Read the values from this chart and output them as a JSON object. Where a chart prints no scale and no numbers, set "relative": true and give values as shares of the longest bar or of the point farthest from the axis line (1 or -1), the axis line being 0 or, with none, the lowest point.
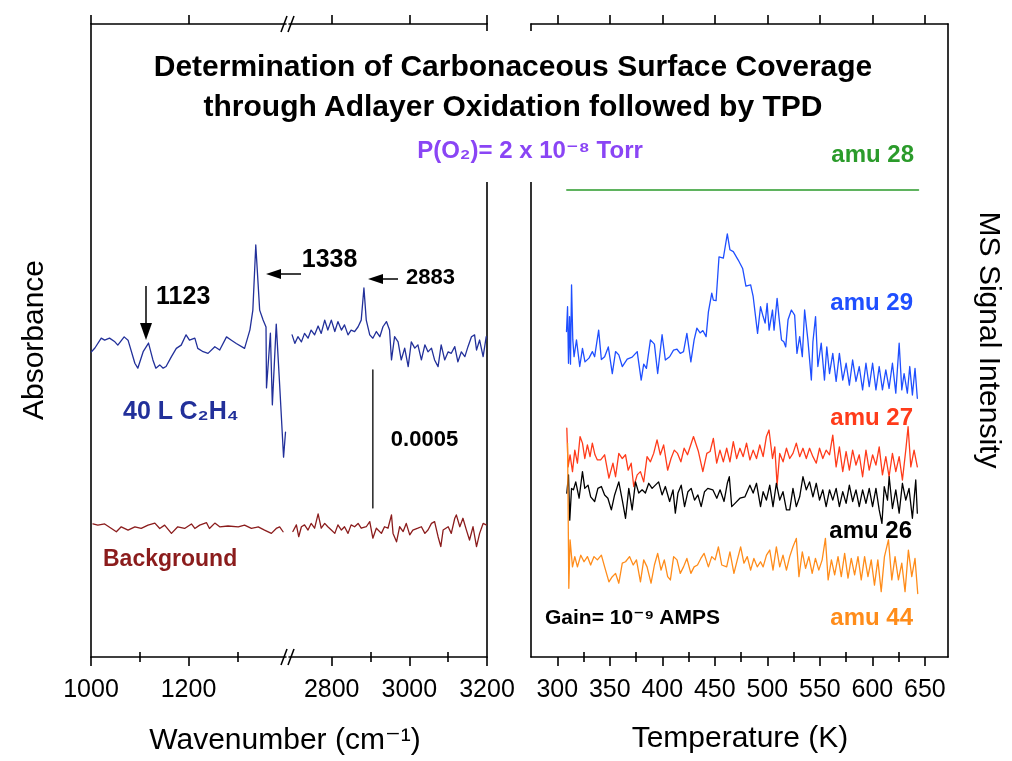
{
  "chart_data": [
    {
      "type": "line",
      "title": "Determination of Carbonaceous Surface Coverage\nthrough Adlayer Oxidation followed by TPD",
      "xlabel": "Wavenumber (cm⁻¹)",
      "ylabel": "Absorbance",
      "relative": true,
      "tick_labels": "x",
      "xlim": [
        1000,
        1400
      ],
      "xticks": [
        1000,
        {
          "value": 1100,
          "label": null
        },
        1200,
        {
          "value": 1300,
          "label": null
        }
      ],
      "annotations": [
        {
          "text": "1123",
          "x": 1113,
          "y": 0.77
        },
        {
          "text": "1338",
          "x": 1338,
          "y": 0.93
        }
      ],
      "series": [
        {
          "name": "40 L C₂H₄",
          "color": "#22309a",
          "x": [
            1001,
            1008,
            1021,
            1028,
            1038,
            1049,
            1055,
            1068,
            1076,
            1090,
            1096,
            1107,
            1118,
            1127,
            1133,
            1141,
            1148,
            1154,
            1165,
            1175,
            1185,
            1195,
            1202,
            1213,
            1219,
            1230,
            1240,
            1254,
            1264,
            1278,
            1288,
            1298,
            1315,
            1326,
            1332,
            1338,
            1346,
            1353,
            1359,
            1360,
            1368,
            1372,
            1380,
            1387,
            1395,
            1399
          ],
          "values": [
            0.741,
            0.75,
            0.774,
            0.769,
            0.774,
            0.765,
            0.757,
            0.777,
            0.769,
            0.713,
            0.701,
            0.741,
            0.762,
            0.721,
            0.701,
            0.709,
            0.701,
            0.705,
            0.729,
            0.749,
            0.757,
            0.782,
            0.769,
            0.774,
            0.749,
            0.741,
            0.737,
            0.753,
            0.745,
            0.777,
            0.769,
            0.761,
            0.749,
            0.794,
            0.842,
            1,
            0.842,
            0.818,
            0.801,
            0.653,
            0.786,
            0.612,
            0.808,
            0.66,
            0.485,
            0.546
          ]
        },
        {
          "name": "Background",
          "color": "#8b1c1c",
          "x": [
            1004,
            1014,
            1028,
            1042,
            1052,
            1062,
            1076,
            1090,
            1103,
            1117,
            1131,
            1141,
            1151,
            1165,
            1178,
            1192,
            1206,
            1213,
            1223,
            1237,
            1243,
            1254,
            1264,
            1281,
            1302,
            1315,
            1329,
            1343,
            1356,
            1370,
            1380,
            1387,
            1394
          ],
          "values": [
            0.323,
            0.32,
            0.323,
            0.312,
            0.304,
            0.316,
            0.308,
            0.316,
            0.312,
            0.32,
            0.325,
            0.312,
            0.32,
            0.3,
            0.316,
            0.312,
            0.323,
            0.312,
            0.32,
            0.326,
            0.312,
            0.325,
            0.316,
            0.318,
            0.316,
            0.32,
            0.312,
            0.316,
            0.308,
            0.3,
            0.312,
            0.316,
            0.304
          ]
        }
      ]
    },
    {
      "type": "line",
      "relative": true,
      "tick_labels": "x",
      "xlim": [
        2690,
        3200
      ],
      "xticks": [
        2800,
        {
          "value": 2900,
          "label": null
        },
        3000,
        {
          "value": 3100,
          "label": null
        },
        3200
      ],
      "annotations": [
        {
          "text": "2883",
          "x": 2883,
          "y": 1
        },
        {
          "text": "0.0005",
          "x": 2906,
          "y": 0.59
        }
      ],
      "series": [
        {
          "color": "#22309a",
          "x": [
            2698,
            2705,
            2713,
            2722,
            2730,
            2739,
            2747,
            2756,
            2765,
            2773,
            2782,
            2790,
            2799,
            2808,
            2816,
            2825,
            2833,
            2842,
            2850,
            2859,
            2868,
            2876,
            2883,
            2889,
            2898,
            2906,
            2915,
            2924,
            2932,
            2941,
            2949,
            2954,
            2962,
            2971,
            2979,
            2988,
            2997,
            3005,
            3014,
            3022,
            3031,
            3040,
            3048,
            3057,
            3065,
            3074,
            3082,
            3091,
            3100,
            3108,
            3117,
            3125,
            3134,
            3143,
            3151,
            3160,
            3168,
            3173,
            3181,
            3190,
            3198
          ],
          "values": [
            0.873,
            0.85,
            0.868,
            0.854,
            0.877,
            0.864,
            0.886,
            0.873,
            0.897,
            0.877,
            0.913,
            0.886,
            0.913,
            0.882,
            0.909,
            0.886,
            0.9,
            0.873,
            0.886,
            0.882,
            0.895,
            0.913,
            1,
            0.913,
            0.873,
            0.864,
            0.882,
            0.868,
            0.895,
            0.909,
            0.886,
            0.805,
            0.868,
            0.854,
            0.805,
            0.837,
            0.787,
            0.854,
            0.837,
            0.846,
            0.805,
            0.846,
            0.827,
            0.837,
            0.805,
            0.787,
            0.846,
            0.805,
            0.827,
            0.823,
            0.841,
            0.8,
            0.827,
            0.814,
            0.841,
            0.868,
            0.873,
            0.832,
            0.859,
            0.814,
            0.868
          ]
        },
        {
          "color": "#8b1c1c",
          "x": [
            2700,
            2709,
            2715,
            2722,
            2730,
            2739,
            2747,
            2756,
            2765,
            2773,
            2782,
            2790,
            2799,
            2808,
            2816,
            2825,
            2833,
            2842,
            2850,
            2859,
            2868,
            2876,
            2889,
            2898,
            2906,
            2915,
            2928,
            2936,
            2945,
            2954,
            2958,
            2967,
            2975,
            2984,
            2992,
            3001,
            3009,
            3022,
            3031,
            3040,
            3048,
            3057,
            3065,
            3074,
            3081,
            3087,
            3100,
            3108,
            3117,
            3121,
            3130,
            3138,
            3147,
            3155,
            3164,
            3173,
            3181,
            3190,
            3198
          ],
          "values": [
            0.34,
            0.358,
            0.326,
            0.353,
            0.358,
            0.344,
            0.362,
            0.349,
            0.388,
            0.349,
            0.362,
            0.353,
            0.344,
            0.335,
            0.358,
            0.344,
            0.353,
            0.335,
            0.358,
            0.353,
            0.362,
            0.349,
            0.353,
            0.367,
            0.322,
            0.349,
            0.335,
            0.353,
            0.349,
            0.385,
            0.335,
            0.312,
            0.353,
            0.34,
            0.362,
            0.331,
            0.344,
            0.349,
            0.353,
            0.335,
            0.344,
            0.362,
            0.367,
            0.326,
            0.299,
            0.344,
            0.353,
            0.335,
            0.376,
            0.385,
            0.353,
            0.376,
            0.344,
            0.317,
            0.353,
            0.299,
            0.335,
            0.362,
            0.358
          ]
        },
        {
          "color": "#000000",
          "x": [
            2906,
            2906
          ],
          "values": [
            0.404,
            0.778
          ]
        }
      ]
    },
    {
      "type": "line",
      "subtitle": "P(O₂)= 2 x 10⁻⁸ Torr",
      "xlabel": "Temperature (K)",
      "ylabel": "MS Signal Intensity",
      "relative": true,
      "tick_labels": "x",
      "xlim": [
        275,
        672
      ],
      "xticks": [
        300,
        {
          "value": 325,
          "label": null
        },
        350,
        {
          "value": 375,
          "label": null
        },
        400,
        {
          "value": 425,
          "label": null
        },
        450,
        {
          "value": 475,
          "label": null
        },
        500,
        {
          "value": 525,
          "label": null
        },
        550,
        {
          "value": 575,
          "label": null
        },
        600,
        {
          "value": 625,
          "label": null
        },
        650
      ],
      "annotations": [
        "Gain= 10⁻⁹ AMPS"
      ],
      "series": [
        {
          "name": "amu 28",
          "color": "#2b9b2b",
          "x": [
            309,
            644
          ],
          "values": [
            1,
            1
          ]
        },
        {
          "name": "amu 29",
          "color": "#1f4fff",
          "x": [
            308.8,
            309.8,
            310.7,
            311.7,
            312.6,
            313.6,
            314.8,
            316.0,
            318.3,
            321.4,
            324.0,
            326.4,
            330.2,
            333.4,
            335.6,
            339.4,
            342.0,
            345.1,
            348.6,
            352.4,
            355.5,
            358.6,
            361.9,
            366.6,
            371.3,
            376.1,
            379.9,
            382.3,
            384.9,
            388.7,
            392.5,
            395.6,
            399.8,
            402.9,
            407.0,
            410.7,
            414.0,
            417.1,
            420.2,
            423.4,
            427.2,
            430.3,
            432.9,
            436.0,
            438.6,
            441.7,
            443.9,
            447.1,
            448.6,
            451.2,
            454.0,
            458.1,
            461.9,
            464.4,
            467.6,
            472.3,
            476.5,
            479.6,
            484.1,
            486.5,
            490.7,
            493.5,
            496.0,
            497.9,
            499.8,
            501.7,
            504.9,
            506.4,
            509.3,
            511.2,
            513.5,
            515.7,
            517.5,
            519.7,
            522.9,
            526.0,
            528.2,
            530.8,
            533.3,
            535.5,
            538.6,
            541.9,
            543.4,
            545.9,
            548.1,
            551.3,
            554.4,
            556.6,
            559.2,
            562.3,
            565.5,
            568.6,
            571.8,
            575.0,
            578.1,
            581.2,
            584.4,
            587.5,
            590.7,
            593.9,
            597.0,
            600.2,
            603.4,
            606.5,
            609.6,
            612.8,
            615.9,
            619.1,
            622.3,
            625.5,
            628.0,
            630.2,
            633.3,
            635.6,
            638.1,
            640.6,
            642.8
          ],
          "values": [
            0.697,
            0.75,
            0.629,
            0.729,
            0.627,
            0.797,
            0.679,
            0.643,
            0.679,
            0.622,
            0.661,
            0.632,
            0.64,
            0.654,
            0.643,
            0.7,
            0.637,
            0.643,
            0.664,
            0.607,
            0.654,
            0.647,
            0.622,
            0.638,
            0.642,
            0.654,
            0.593,
            0.627,
            0.618,
            0.679,
            0.67,
            0.607,
            0.69,
            0.636,
            0.643,
            0.657,
            0.659,
            0.65,
            0.654,
            0.693,
            0.632,
            0.679,
            0.704,
            0.694,
            0.699,
            0.686,
            0.739,
            0.779,
            0.764,
            0.763,
            0.857,
            0.854,
            0.906,
            0.872,
            0.868,
            0.85,
            0.832,
            0.794,
            0.797,
            0.772,
            0.693,
            0.75,
            0.729,
            0.715,
            0.757,
            0.7,
            0.743,
            0.7,
            0.768,
            0.725,
            0.679,
            0.675,
            0.664,
            0.722,
            0.743,
            0.732,
            0.65,
            0.686,
            0.643,
            0.743,
            0.679,
            0.593,
            0.675,
            0.729,
            0.622,
            0.672,
            0.593,
            0.664,
            0.607,
            0.65,
            0.59,
            0.65,
            0.593,
            0.629,
            0.582,
            0.636,
            0.59,
            0.622,
            0.572,
            0.629,
            0.579,
            0.629,
            0.572,
            0.622,
            0.572,
            0.615,
            0.575,
            0.629,
            0.565,
            0.672,
            0.572,
            0.607,
            0.565,
            0.622,
            0.561,
            0.618,
            0.554
          ]
        },
        {
          "name": "amu 27",
          "color": "#ff3b1a",
          "x": [
            309.1,
            310.3,
            312.2,
            314.5,
            316.7,
            319.2,
            321.7,
            324.0,
            326.2,
            328.7,
            331.2,
            333.4,
            335.9,
            338.2,
            341.3,
            345.1,
            349.2,
            353.0,
            355.5,
            358.6,
            361.9,
            365.0,
            367.5,
            370.4,
            372.8,
            376.1,
            379.2,
            382.3,
            385.5,
            388.7,
            391.8,
            395.0,
            398.1,
            401.3,
            405.1,
            408.3,
            411.4,
            414.5,
            417.7,
            420.8,
            424.0,
            429.7,
            434.4,
            438.6,
            442.4,
            445.5,
            448.6,
            451.8,
            454.9,
            458.1,
            461.3,
            464.4,
            467.6,
            470.8,
            473.9,
            477.0,
            480.2,
            483.4,
            486.5,
            489.7,
            492.8,
            496.0,
            499.1,
            501.6,
            504.9,
            507.1,
            509.3,
            511.8,
            515.0,
            518.2,
            521.3,
            524.4,
            527.6,
            530.8,
            533.9,
            537.1,
            540.2,
            543.4,
            546.6,
            549.7,
            552.8,
            556.0,
            559.2,
            562.3,
            565.5,
            568.6,
            571.8,
            575.0,
            578.1,
            581.2,
            584.4,
            587.5,
            590.7,
            593.9,
            597.0,
            600.2,
            603.4,
            606.5,
            609.6,
            612.8,
            615.9,
            619.1,
            622.3,
            625.5,
            628.6,
            631.8,
            634.0,
            636.6,
            639.7,
            642.8
          ],
          "values": [
            0.49,
            0.407,
            0.433,
            0.397,
            0.443,
            0.415,
            0.472,
            0.458,
            0.425,
            0.454,
            0.429,
            0.458,
            0.433,
            0.422,
            0.422,
            0.433,
            0.383,
            0.415,
            0.386,
            0.436,
            0.425,
            0.433,
            0.4,
            0.415,
            0.365,
            0.39,
            0.397,
            0.375,
            0.429,
            0.418,
            0.436,
            0.465,
            0.433,
            0.454,
            0.4,
            0.425,
            0.443,
            0.436,
            0.418,
            0.447,
            0.433,
            0.472,
            0.44,
            0.397,
            0.436,
            0.44,
            0.468,
            0.415,
            0.443,
            0.418,
            0.447,
            0.418,
            0.461,
            0.425,
            0.447,
            0.429,
            0.458,
            0.422,
            0.443,
            0.425,
            0.454,
            0.429,
            0.472,
            0.486,
            0.425,
            0.45,
            0.368,
            0.436,
            0.418,
            0.447,
            0.425,
            0.436,
            0.458,
            0.429,
            0.447,
            0.425,
            0.447,
            0.429,
            0.415,
            0.447,
            0.425,
            0.443,
            0.433,
            0.475,
            0.407,
            0.45,
            0.397,
            0.44,
            0.4,
            0.443,
            0.411,
            0.433,
            0.386,
            0.443,
            0.4,
            0.433,
            0.411,
            0.45,
            0.39,
            0.429,
            0.386,
            0.436,
            0.397,
            0.429,
            0.379,
            0.443,
            0.493,
            0.407,
            0.443,
            0.407
          ]
        },
        {
          "name": "amu 26",
          "color": "#000000",
          "x": [
            309.1,
            310.7,
            311.9,
            313.6,
            315.4,
            317.6,
            320.8,
            324.0,
            326.2,
            329.3,
            331.8,
            335.6,
            338.7,
            342.0,
            345.1,
            348.2,
            351.5,
            354.6,
            358.6,
            361.9,
            365.0,
            368.1,
            371.3,
            374.5,
            377.6,
            380.8,
            383.9,
            387.1,
            390.3,
            393.4,
            396.5,
            399.8,
            402.9,
            407.0,
            410.2,
            412.4,
            414.9,
            418.0,
            421.2,
            424.4,
            427.5,
            430.7,
            433.9,
            437.0,
            440.2,
            443.3,
            448.1,
            451.9,
            455.0,
            458.8,
            461.9,
            463.8,
            466.1,
            469.2,
            473.9,
            478.7,
            483.4,
            486.5,
            489.7,
            493.5,
            496.0,
            499.1,
            502.3,
            505.4,
            508.6,
            511.8,
            514.9,
            518.2,
            521.3,
            524.4,
            527.6,
            530.8,
            533.9,
            537.1,
            540.2,
            543.4,
            546.6,
            549.7,
            552.8,
            556.0,
            559.2,
            562.3,
            565.5,
            568.6,
            571.8,
            575.0,
            578.1,
            581.2,
            584.4,
            587.5,
            590.7,
            593.9,
            597.0,
            600.2,
            603.4,
            606.5,
            609.1,
            611.3,
            614.4,
            616.0,
            619.1,
            622.3,
            625.5,
            628.6,
            631.8,
            634.9,
            638.1,
            641.3,
            642.8
          ],
          "values": [
            0.351,
            0.39,
            0.293,
            0.361,
            0.358,
            0.375,
            0.34,
            0.397,
            0.361,
            0.368,
            0.343,
            0.333,
            0.361,
            0.365,
            0.347,
            0.34,
            0.315,
            0.347,
            0.375,
            0.336,
            0.297,
            0.361,
            0.315,
            0.375,
            0.351,
            0.358,
            0.351,
            0.372,
            0.361,
            0.368,
            0.375,
            0.347,
            0.365,
            0.333,
            0.358,
            0.308,
            0.351,
            0.368,
            0.322,
            0.354,
            0.361,
            0.336,
            0.347,
            0.322,
            0.354,
            0.361,
            0.358,
            0.34,
            0.358,
            0.333,
            0.372,
            0.386,
            0.322,
            0.329,
            0.34,
            0.343,
            0.368,
            0.351,
            0.372,
            0.322,
            0.354,
            0.336,
            0.368,
            0.322,
            0.372,
            0.336,
            0.354,
            0.315,
            0.315,
            0.361,
            0.322,
            0.343,
            0.386,
            0.358,
            0.375,
            0.343,
            0.372,
            0.336,
            0.358,
            0.322,
            0.358,
            0.336,
            0.361,
            0.322,
            0.354,
            0.329,
            0.368,
            0.333,
            0.358,
            0.322,
            0.358,
            0.329,
            0.361,
            0.322,
            0.361,
            0.315,
            0.286,
            0.365,
            0.336,
            0.386,
            0.318,
            0.358,
            0.308,
            0.372,
            0.336,
            0.361,
            0.297,
            0.379,
            0.308
          ]
        },
        {
          "name": "amu 44",
          "color": "#ff8c1a",
          "x": [
            309.8,
            311.0,
            312.2,
            314.5,
            316.7,
            319.2,
            322.4,
            325.5,
            328.7,
            331.8,
            335.0,
            338.2,
            342.0,
            345.1,
            349.2,
            352.4,
            355.5,
            358.6,
            361.9,
            365.0,
            368.8,
            372.3,
            375.4,
            379.2,
            382.3,
            385.5,
            389.3,
            392.5,
            395.6,
            398.8,
            401.9,
            405.1,
            407.7,
            410.8,
            414.0,
            417.1,
            420.2,
            423.4,
            427.2,
            430.3,
            433.5,
            436.7,
            439.8,
            443.9,
            447.1,
            450.3,
            453.4,
            456.6,
            461.3,
            464.4,
            468.2,
            471.4,
            474.6,
            477.7,
            480.9,
            484.1,
            487.2,
            490.4,
            493.5,
            496.0,
            499.2,
            502.3,
            505.4,
            508.6,
            511.8,
            514.9,
            518.2,
            521.3,
            524.4,
            527.6,
            530.1,
            533.3,
            536.4,
            539.5,
            542.7,
            545.8,
            549.0,
            552.2,
            555.3,
            557.9,
            561.0,
            564.1,
            567.3,
            570.4,
            573.6,
            576.8,
            579.9,
            583.1,
            586.3,
            589.4,
            592.6,
            595.8,
            598.9,
            602.0,
            605.2,
            608.4,
            611.5,
            615.3,
            618.5,
            621.6,
            624.8,
            628.0,
            631.1,
            634.3,
            637.5,
            640.6,
            643.2
          ],
          "values": [
            0.458,
            0.147,
            0.251,
            0.193,
            0.215,
            0.193,
            0.218,
            0.204,
            0.215,
            0.197,
            0.215,
            0.208,
            0.218,
            0.193,
            0.161,
            0.172,
            0.179,
            0.158,
            0.201,
            0.204,
            0.215,
            0.197,
            0.208,
            0.161,
            0.208,
            0.193,
            0.158,
            0.197,
            0.222,
            0.186,
            0.208,
            0.172,
            0.165,
            0.215,
            0.208,
            0.179,
            0.193,
            0.211,
            0.179,
            0.193,
            0.197,
            0.211,
            0.222,
            0.193,
            0.215,
            0.208,
            0.236,
            0.197,
            0.193,
            0.225,
            0.179,
            0.208,
            0.236,
            0.201,
            0.215,
            0.186,
            0.211,
            0.193,
            0.204,
            0.193,
            0.218,
            0.229,
            0.186,
            0.236,
            0.193,
            0.218,
            0.186,
            0.215,
            0.236,
            0.254,
            0.172,
            0.225,
            0.19,
            0.215,
            0.179,
            0.211,
            0.186,
            0.208,
            0.254,
            0.165,
            0.208,
            0.176,
            0.215,
            0.172,
            0.222,
            0.169,
            0.211,
            0.176,
            0.215,
            0.165,
            0.215,
            0.172,
            0.208,
            0.154,
            0.208,
            0.14,
            0.215,
            0.251,
            0.165,
            0.215,
            0.165,
            0.201,
            0.14,
            0.229,
            0.172,
            0.211,
            0.136
          ]
        }
      ]
    }
  ]
}
